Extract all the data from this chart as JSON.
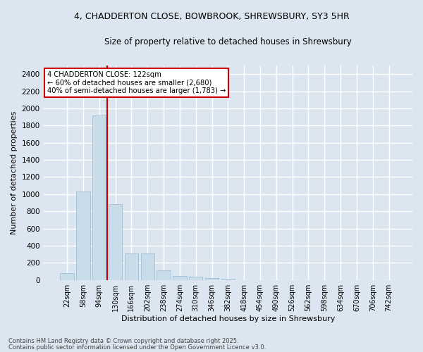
{
  "title_line1": "4, CHADDERTON CLOSE, BOWBROOK, SHREWSBURY, SY3 5HR",
  "title_line2": "Size of property relative to detached houses in Shrewsbury",
  "xlabel": "Distribution of detached houses by size in Shrewsbury",
  "ylabel": "Number of detached properties",
  "categories": [
    "22sqm",
    "58sqm",
    "94sqm",
    "130sqm",
    "166sqm",
    "202sqm",
    "238sqm",
    "274sqm",
    "310sqm",
    "346sqm",
    "382sqm",
    "418sqm",
    "454sqm",
    "490sqm",
    "526sqm",
    "562sqm",
    "598sqm",
    "634sqm",
    "670sqm",
    "706sqm",
    "742sqm"
  ],
  "values": [
    80,
    1030,
    1920,
    880,
    310,
    310,
    110,
    50,
    40,
    20,
    15,
    0,
    0,
    0,
    0,
    0,
    0,
    0,
    0,
    0,
    0
  ],
  "bar_color": "#c9dcea",
  "bar_edge_color": "#a8c4d8",
  "vline_color": "#cc0000",
  "annotation_text": "4 CHADDERTON CLOSE: 122sqm\n← 60% of detached houses are smaller (2,680)\n40% of semi-detached houses are larger (1,783) →",
  "annotation_box_color": "#ffffff",
  "annotation_box_edge": "#cc0000",
  "ylim": [
    0,
    2500
  ],
  "yticks": [
    0,
    200,
    400,
    600,
    800,
    1000,
    1200,
    1400,
    1600,
    1800,
    2000,
    2200,
    2400
  ],
  "background_color": "#dce6f0",
  "plot_bg_color": "#dce6f0",
  "grid_color": "#ffffff",
  "footer_line1": "Contains HM Land Registry data © Crown copyright and database right 2025.",
  "footer_line2": "Contains public sector information licensed under the Open Government Licence v3.0."
}
